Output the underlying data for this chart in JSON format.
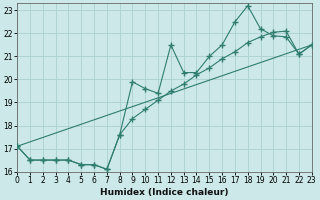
{
  "xlabel": "Humidex (Indice chaleur)",
  "bg_color": "#cde8e8",
  "grid_color": "#b0d4d4",
  "line_color": "#2e7d6e",
  "xlim": [
    0,
    23
  ],
  "ylim": [
    16,
    23.3
  ],
  "xticks": [
    0,
    1,
    2,
    3,
    4,
    5,
    6,
    7,
    8,
    9,
    10,
    11,
    12,
    13,
    14,
    15,
    16,
    17,
    18,
    19,
    20,
    21,
    22,
    23
  ],
  "yticks": [
    16,
    17,
    18,
    19,
    20,
    21,
    22,
    23
  ],
  "line1_x": [
    0,
    1,
    2,
    3,
    4,
    5,
    6,
    7,
    8,
    9,
    10,
    11,
    12,
    13,
    14,
    15,
    16,
    17,
    18,
    19,
    20,
    21,
    22,
    23
  ],
  "line1_y": [
    17.1,
    16.5,
    16.5,
    16.5,
    16.5,
    16.3,
    16.3,
    16.1,
    17.6,
    19.9,
    19.6,
    19.4,
    21.5,
    20.3,
    20.3,
    21.0,
    21.5,
    22.5,
    23.2,
    22.2,
    21.9,
    21.85,
    21.1,
    21.5
  ],
  "line2_x": [
    0,
    1,
    2,
    3,
    4,
    5,
    6,
    7,
    8,
    9,
    10,
    11,
    12,
    13,
    14,
    15,
    16,
    17,
    18,
    19,
    20,
    21,
    22,
    23
  ],
  "line2_y": [
    17.1,
    16.5,
    16.5,
    16.5,
    16.5,
    16.3,
    16.3,
    16.1,
    17.6,
    18.3,
    18.7,
    19.1,
    19.5,
    19.8,
    20.2,
    20.5,
    20.9,
    21.2,
    21.6,
    21.85,
    22.05,
    22.1,
    21.1,
    21.5
  ],
  "line3_x": [
    0,
    23
  ],
  "line3_y": [
    17.1,
    21.5
  ]
}
